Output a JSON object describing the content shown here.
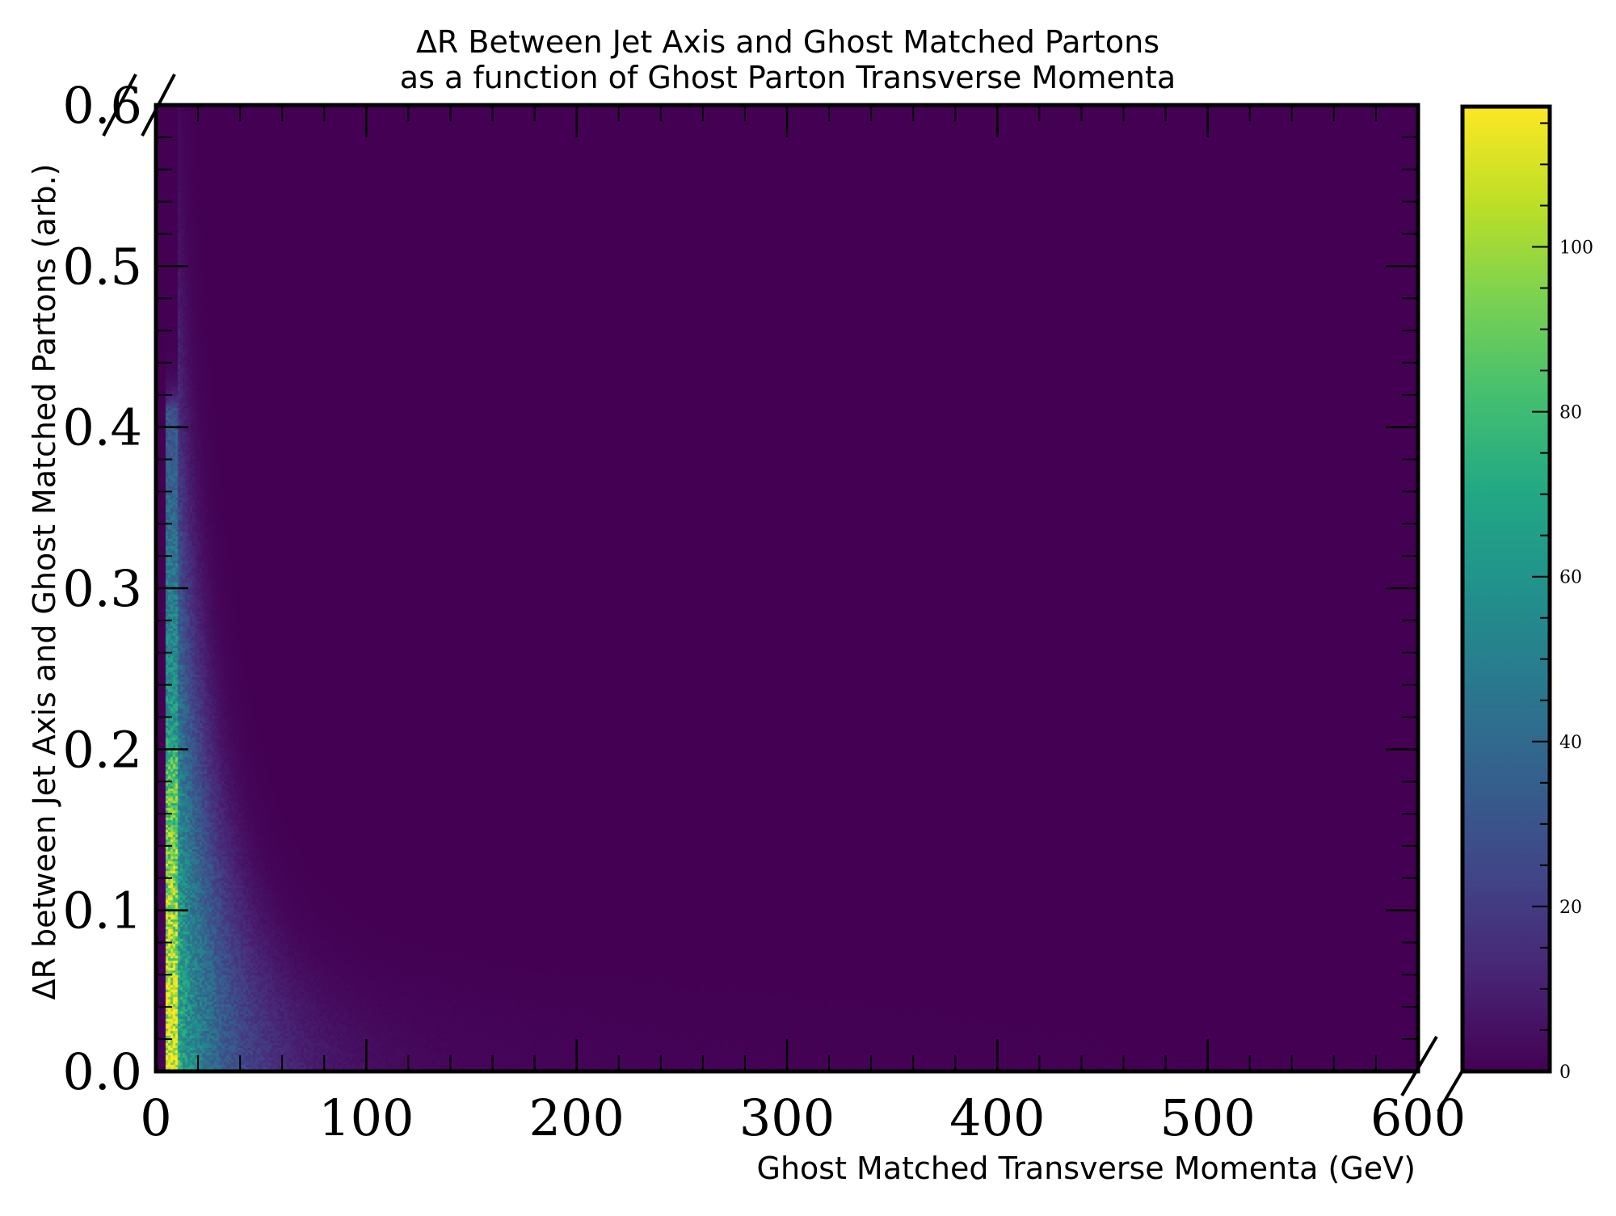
{
  "chart_data": {
    "type": "heatmap",
    "title_lines": [
      "ΔR Between Jet Axis and Ghost Matched Partons",
      "as a function of Ghost Parton Transverse Momenta"
    ],
    "xlabel": "Ghost Matched Transverse Momenta (GeV)",
    "ylabel": "ΔR between Jet Axis and Ghost Matched Partons (arb.)",
    "xlim": [
      0,
      600
    ],
    "ylim": [
      0.0,
      0.6
    ],
    "x_ticks": [
      "0",
      "100",
      "200",
      "300",
      "400",
      "500",
      "600"
    ],
    "y_ticks": [
      "0.0",
      "0.1",
      "0.2",
      "0.3",
      "0.4",
      "0.5",
      "0.6"
    ],
    "colorbar": {
      "colormap": "viridis",
      "range": [
        0,
        117
      ],
      "ticks": [
        "0",
        "20",
        "40",
        "60",
        "80",
        "100"
      ]
    },
    "density_description": {
      "peak_region_x": [
        5,
        10
      ],
      "peak_region_y": [
        0.0,
        0.41
      ],
      "max_count": 117,
      "decay": "counts fall off steeply with x; ΔR spread narrows as x increases"
    },
    "colors": {
      "background": "#440154",
      "frame": "#000000"
    },
    "grid": false
  }
}
